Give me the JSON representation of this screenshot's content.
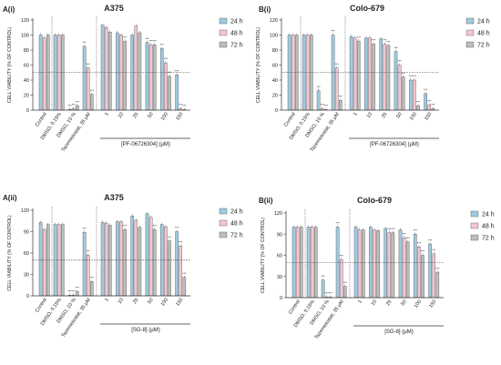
{
  "chart_data": [
    {
      "panel": "A(i)",
      "type": "bar",
      "title": "A375",
      "ylabel": "CELL VIABILITY (% OF CONTROL)",
      "ylim": [
        0,
        120
      ],
      "yticks": [
        "0",
        "20",
        "40",
        "60",
        "80",
        "100",
        "120"
      ],
      "reference_line": 50,
      "categories": [
        "Control",
        "DMSO, 0.15%",
        "DMSO, 10 %",
        "Tazemetostat, 35 μM",
        "1",
        "10",
        "25",
        "50",
        "100",
        "150"
      ],
      "dose_bracket": "[PF-06726304] (μM)",
      "series": [
        {
          "name": "24 h",
          "values": [
            100,
            100,
            1,
            85,
            113,
            103,
            100,
            90,
            82,
            47
          ]
        },
        {
          "name": "48 h",
          "values": [
            96,
            100,
            2,
            56,
            110,
            100,
            112,
            87,
            63,
            2
          ]
        },
        {
          "name": "72 h",
          "values": [
            100,
            100,
            6,
            21,
            104,
            92,
            103,
            87,
            45,
            0
          ]
        }
      ],
      "legend": [
        "24 h",
        "48 h",
        "72 h"
      ]
    },
    {
      "panel": "B(i)",
      "type": "bar",
      "title": "Colo-679",
      "ylabel": "CELL VIABILITY (% OF CONTROL)",
      "ylim": [
        0,
        120
      ],
      "yticks": [
        "0",
        "20",
        "40",
        "60",
        "80",
        "100",
        "120"
      ],
      "reference_line": 50,
      "categories": [
        "Control",
        "DMSO, 0.15%",
        "DMSO, 10 %",
        "Tazemetostat, 35 μM",
        "1",
        "10",
        "25",
        "50",
        "100",
        "150"
      ],
      "dose_bracket": "[PF-06726304] (μM)",
      "series": [
        {
          "name": "24 h",
          "values": [
            100,
            100,
            26,
            100,
            98,
            96,
            95,
            78,
            40,
            22
          ]
        },
        {
          "name": "48 h",
          "values": [
            100,
            100,
            2,
            56,
            96,
            96,
            88,
            60,
            40,
            7
          ]
        },
        {
          "name": "72 h",
          "values": [
            100,
            100,
            0,
            13,
            92,
            88,
            86,
            44,
            6,
            2
          ]
        }
      ],
      "legend": [
        "24 h",
        "48 h",
        "72 h"
      ]
    },
    {
      "panel": "A(ii)",
      "type": "bar",
      "title": "A375",
      "ylabel": "CELL VIABILITY (% OF CONTROL)",
      "ylim": [
        0,
        120
      ],
      "yticks": [
        "0",
        "30",
        "60",
        "90",
        "120"
      ],
      "reference_line": 50,
      "categories": [
        "Control",
        "DMSO, 0.15%",
        "DMSO, 10 %",
        "Tazemetostat, 35 μM",
        "1",
        "10",
        "25",
        "50",
        "100",
        "150"
      ],
      "dose_bracket": "[SG-8] (μM)",
      "series": [
        {
          "name": "24 h",
          "values": [
            103,
            100,
            1,
            89,
            103,
            104,
            112,
            115,
            100,
            90
          ]
        },
        {
          "name": "48 h",
          "values": [
            93,
            100,
            1,
            57,
            102,
            104,
            106,
            110,
            97,
            70
          ]
        },
        {
          "name": "72 h",
          "values": [
            100,
            100,
            6,
            20,
            99,
            93,
            96,
            93,
            77,
            26
          ]
        }
      ],
      "legend": [
        "24 h",
        "48 h",
        "72 h"
      ]
    },
    {
      "panel": "B(ii)",
      "type": "bar",
      "title": "Colo-679",
      "ylabel": "CELL VIABILITY (% OF CONTROL)",
      "ylim": [
        0,
        120
      ],
      "yticks": [
        "0",
        "30",
        "60",
        "90",
        "120"
      ],
      "reference_line": 50,
      "categories": [
        "Control",
        "DMSO, 0.15%",
        "DMSO, 10 %",
        "Tazemetostat, 35 μM",
        "1",
        "10",
        "25",
        "50",
        "100",
        "150"
      ],
      "dose_bracket": "[SG-8] (μM)",
      "series": [
        {
          "name": "24 h",
          "values": [
            100,
            100,
            25,
            100,
            100,
            100,
            98,
            96,
            90,
            76
          ]
        },
        {
          "name": "48 h",
          "values": [
            100,
            100,
            1,
            54,
            96,
            96,
            92,
            85,
            72,
            62
          ]
        },
        {
          "name": "72 h",
          "values": [
            100,
            100,
            0,
            16,
            96,
            95,
            92,
            79,
            60,
            36
          ]
        }
      ],
      "legend": [
        "24 h",
        "48 h",
        "72 h"
      ]
    }
  ],
  "colors": {
    "24 h": "#9ecae1",
    "48 h": "#f4c6cf",
    "72 h": "#bdbdbd"
  },
  "significance_mark": "***"
}
